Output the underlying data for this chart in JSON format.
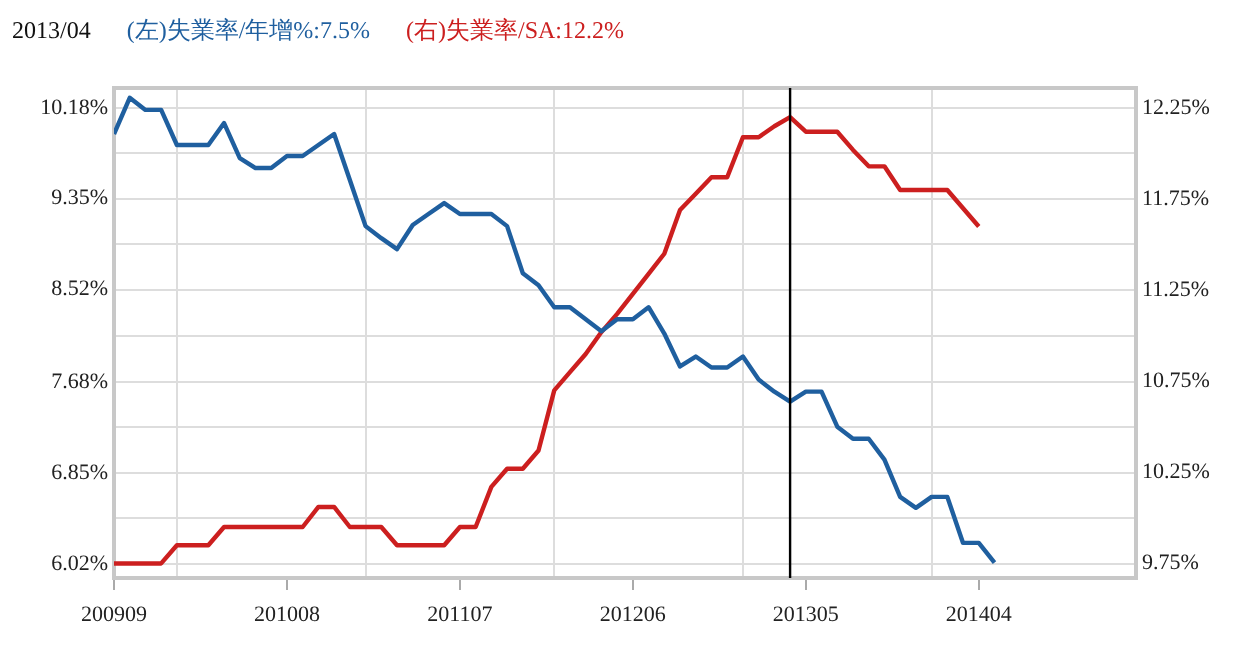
{
  "chart_data": {
    "type": "line",
    "title": "2013/04",
    "x": [
      "2009-09",
      "2009-10",
      "2009-11",
      "2009-12",
      "2010-01",
      "2010-02",
      "2010-03",
      "2010-04",
      "2010-05",
      "2010-06",
      "2010-07",
      "2010-08",
      "2010-09",
      "2010-10",
      "2010-11",
      "2010-12",
      "2011-01",
      "2011-02",
      "2011-03",
      "2011-04",
      "2011-05",
      "2011-06",
      "2011-07",
      "2011-08",
      "2011-09",
      "2011-10",
      "2011-11",
      "2011-12",
      "2012-01",
      "2012-02",
      "2012-03",
      "2012-04",
      "2012-05",
      "2012-06",
      "2012-07",
      "2012-08",
      "2012-09",
      "2012-10",
      "2012-11",
      "2012-12",
      "2013-01",
      "2013-02",
      "2013-03",
      "2013-04",
      "2013-05",
      "2013-06",
      "2013-07",
      "2013-08",
      "2013-09",
      "2013-10",
      "2013-11",
      "2013-12",
      "2014-01",
      "2014-02",
      "2014-03",
      "2014-04",
      "2014-05"
    ],
    "series": [
      {
        "name": "(左)失業率/年增%:7.5%",
        "color": "#1f5f9f",
        "values": [
          9.94,
          10.27,
          10.16,
          10.16,
          9.84,
          9.84,
          9.84,
          10.04,
          9.72,
          9.63,
          9.63,
          9.74,
          9.74,
          9.84,
          9.94,
          9.52,
          9.1,
          8.99,
          8.89,
          9.11,
          9.21,
          9.31,
          9.21,
          9.21,
          9.21,
          9.1,
          8.67,
          8.56,
          8.36,
          8.36,
          8.25,
          8.14,
          8.25,
          8.25,
          8.36,
          8.12,
          7.82,
          7.91,
          7.81,
          7.81,
          7.91,
          7.7,
          7.59,
          7.5,
          7.59,
          7.59,
          7.27,
          7.16,
          7.16,
          6.97,
          6.63,
          6.53,
          6.63,
          6.63,
          6.21,
          6.21,
          6.03
        ]
      },
      {
        "name": "(右)失業率/SA:12.2%",
        "color": "#cc1f1f",
        "axis": "y2",
        "values": [
          9.75,
          9.75,
          9.75,
          9.75,
          9.85,
          9.85,
          9.85,
          9.95,
          9.95,
          9.95,
          9.95,
          9.95,
          9.95,
          10.06,
          10.06,
          9.95,
          9.95,
          9.95,
          9.85,
          9.85,
          9.85,
          9.85,
          9.95,
          9.95,
          10.17,
          10.27,
          10.27,
          10.37,
          10.7,
          10.8,
          10.9,
          11.02,
          11.12,
          11.23,
          11.34,
          11.45,
          11.69,
          11.78,
          11.87,
          11.87,
          12.09,
          12.09,
          12.15,
          12.2,
          12.12,
          12.12,
          12.12,
          12.02,
          11.93,
          11.93,
          11.8,
          11.8,
          11.8,
          11.8,
          11.7,
          11.6,
          null
        ]
      }
    ],
    "xlim": [
      "2009-09",
      "2015-02"
    ],
    "xticks": [
      {
        "value": "2009-09",
        "label": "200909"
      },
      {
        "value": "2010-01",
        "label": null
      },
      {
        "value": "2010-08",
        "label": "201008"
      },
      {
        "value": "2011-01",
        "label": null
      },
      {
        "value": "2011-07",
        "label": "201107"
      },
      {
        "value": "2012-01",
        "label": null
      },
      {
        "value": "2012-06",
        "label": "201206"
      },
      {
        "value": "2013-01",
        "label": null
      },
      {
        "value": "2013-05",
        "label": "201305"
      },
      {
        "value": "2014-01",
        "label": null
      },
      {
        "value": "2014-04",
        "label": "201404"
      }
    ],
    "ylim": [
      5.89,
      10.36
    ],
    "yticks": [
      {
        "value": 6.02,
        "label": "6.02%"
      },
      {
        "value": 6.435,
        "label": null
      },
      {
        "value": 6.85,
        "label": "6.85%"
      },
      {
        "value": 7.265,
        "label": null
      },
      {
        "value": 7.68,
        "label": "7.68%"
      },
      {
        "value": 8.1,
        "label": null
      },
      {
        "value": 8.52,
        "label": "8.52%"
      },
      {
        "value": 8.935,
        "label": null
      },
      {
        "value": 9.35,
        "label": "9.35%"
      },
      {
        "value": 9.765,
        "label": null
      },
      {
        "value": 10.18,
        "label": "10.18%"
      }
    ],
    "y2lim": [
      9.67,
      12.36
    ],
    "y2ticks": [
      {
        "value": 9.75,
        "label": "9.75%"
      },
      {
        "value": 10.25,
        "label": "10.25%"
      },
      {
        "value": 10.75,
        "label": "10.75%"
      },
      {
        "value": 11.25,
        "label": "11.25%"
      },
      {
        "value": 11.75,
        "label": "11.75%"
      },
      {
        "value": 12.25,
        "label": "12.25%"
      }
    ],
    "ref_lines": [
      {
        "axis": "x",
        "value": "2013-04",
        "color": "#000000"
      }
    ],
    "grid": true,
    "legend": "top left",
    "marker": "none",
    "line_style": "solid"
  }
}
